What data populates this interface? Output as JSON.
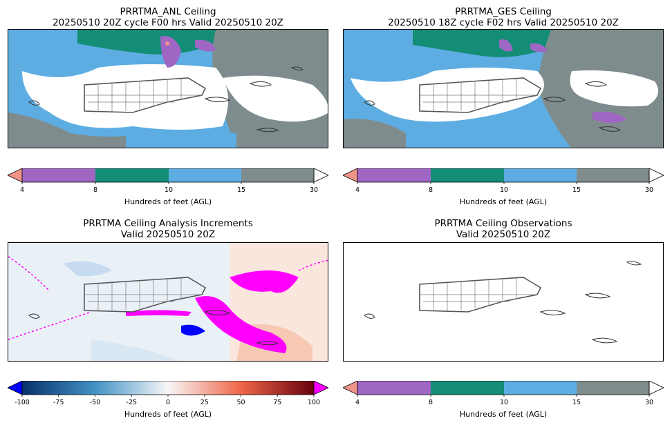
{
  "panels": [
    {
      "title": "PRRTMA_ANL Ceiling",
      "subtitle": "20250510 20Z cycle F00 hrs Valid 20250510 20Z"
    },
    {
      "title": "PRRTMA_GES Ceiling",
      "subtitle": "20250510 18Z cycle F02 hrs Valid 20250510 20Z"
    },
    {
      "title": "PRRTMA Ceiling Analysis Increments",
      "subtitle": "Valid 20250510 20Z"
    },
    {
      "title": "PRRTMA Ceiling Observations",
      "subtitle": "Valid 20250510 20Z"
    }
  ],
  "colorbars": {
    "ceiling": {
      "label": "Hundreds of feet (AGL)",
      "ticks": [
        "4",
        "8",
        "10",
        "15",
        "30"
      ],
      "colors": [
        "#9f66c4",
        "#138d75",
        "#5dade2",
        "#7f8c8d"
      ],
      "under_color": "#f1948a",
      "over_color": "#ffffff"
    },
    "increment": {
      "label": "Hundreds of feet (AGL)",
      "ticks": [
        "-100",
        "-75",
        "-50",
        "-25",
        "0",
        "25",
        "50",
        "75",
        "100"
      ],
      "under_color": "#0000ff",
      "over_color": "#ff00ff"
    }
  },
  "chart_data": [
    {
      "type": "heatmap",
      "title": "PRRTMA_ANL Ceiling",
      "subtitle": "20250510 20Z cycle F00 hrs Valid 20250510 20Z",
      "colorbar_label": "Hundreds of feet (AGL)",
      "levels": [
        4,
        8,
        10,
        15,
        30
      ]
    },
    {
      "type": "heatmap",
      "title": "PRRTMA_GES Ceiling",
      "subtitle": "20250510 18Z cycle F02 hrs Valid 20250510 20Z",
      "colorbar_label": "Hundreds of feet (AGL)",
      "levels": [
        4,
        8,
        10,
        15,
        30
      ]
    },
    {
      "type": "heatmap",
      "title": "PRRTMA Ceiling Analysis Increments",
      "subtitle": "Valid 20250510 20Z",
      "colorbar_label": "Hundreds of feet (AGL)",
      "range": [
        -100,
        100
      ]
    },
    {
      "type": "heatmap",
      "title": "PRRTMA Ceiling Observations",
      "subtitle": "Valid 20250510 20Z",
      "colorbar_label": "Hundreds of feet (AGL)",
      "levels": [
        4,
        8,
        10,
        15,
        30
      ]
    }
  ]
}
